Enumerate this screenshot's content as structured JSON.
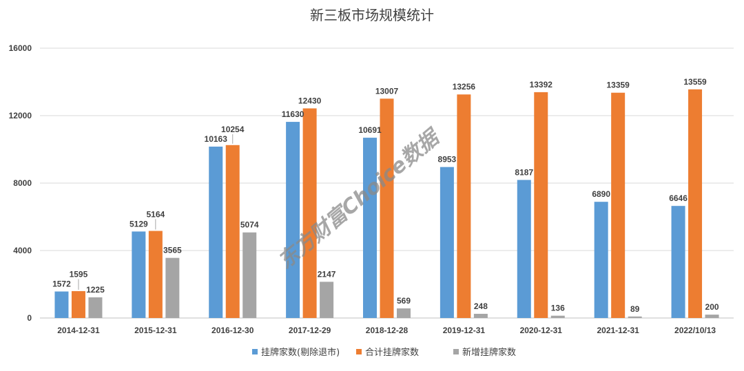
{
  "chart_data": {
    "type": "bar",
    "title": "新三板市场规模统计",
    "xlabel": "",
    "ylabel": "",
    "ylim": [
      0,
      16000
    ],
    "yticks": [
      0,
      4000,
      8000,
      12000,
      16000
    ],
    "grid": true,
    "legend_position": "bottom",
    "categories": [
      "2014-12-31",
      "2015-12-31",
      "2016-12-30",
      "2017-12-29",
      "2018-12-28",
      "2019-12-31",
      "2020-12-31",
      "2021-12-31",
      "2022/10/13"
    ],
    "series": [
      {
        "name": "挂牌家数(剔除退市)",
        "color": "#5B9BD5",
        "values": [
          1572,
          5129,
          10163,
          11630,
          10691,
          8953,
          8187,
          6890,
          6646
        ]
      },
      {
        "name": "合计挂牌家数",
        "color": "#ED7D31",
        "values": [
          1595,
          5164,
          10254,
          12430,
          13007,
          13256,
          13392,
          13359,
          13559
        ]
      },
      {
        "name": "新增挂牌家数",
        "color": "#A5A5A5",
        "values": [
          1225,
          3565,
          5074,
          2147,
          569,
          248,
          136,
          89,
          200
        ]
      }
    ],
    "watermark": "东方财富Choice数据"
  }
}
